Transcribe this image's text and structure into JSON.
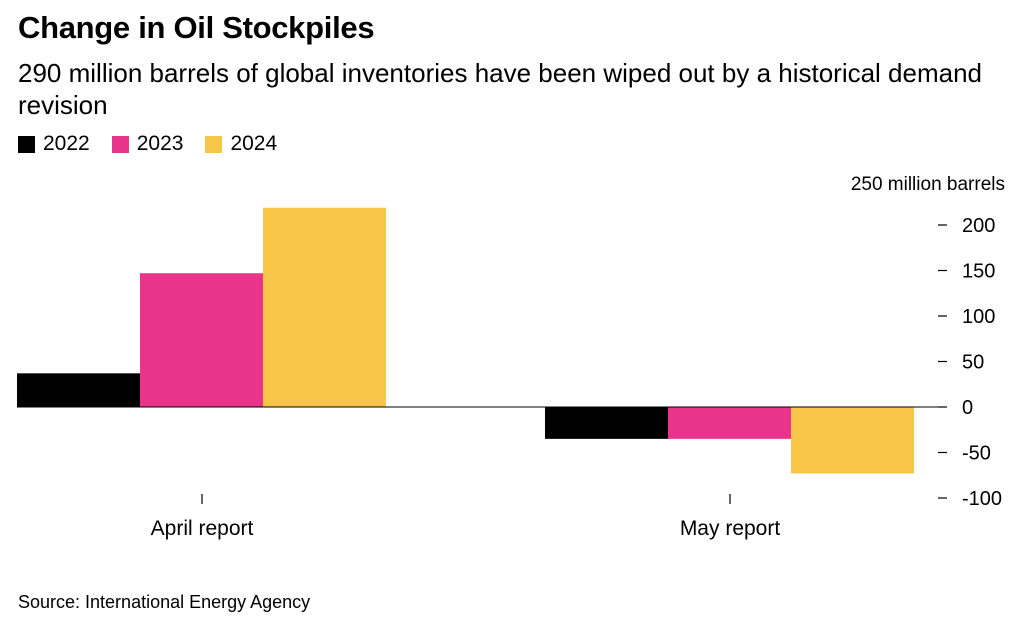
{
  "title": "Change in Oil Stockpiles",
  "subtitle": "290 million barrels of global inventories have been wiped out by a historical demand revision",
  "source": "Source: International Energy Agency",
  "colors": {
    "2022": "#000000",
    "2023": "#e8348b",
    "2024": "#f7c548"
  },
  "chart_data": {
    "type": "bar",
    "title": "Change in Oil Stockpiles",
    "subtitle": "290 million barrels of global inventories have been wiped out by a historical demand revision",
    "categories": [
      "April report",
      "May report"
    ],
    "series": [
      {
        "name": "2022",
        "values": [
          37,
          -35
        ]
      },
      {
        "name": "2023",
        "values": [
          147,
          -35
        ]
      },
      {
        "name": "2024",
        "values": [
          219,
          -73
        ]
      }
    ],
    "yunit_label": "250 million barrels",
    "yticks": [
      "200",
      "150",
      "100",
      "50",
      "0",
      "-50",
      "-100"
    ],
    "ylim": [
      -100,
      250
    ],
    "grid": false,
    "legend_position": "top-left"
  }
}
